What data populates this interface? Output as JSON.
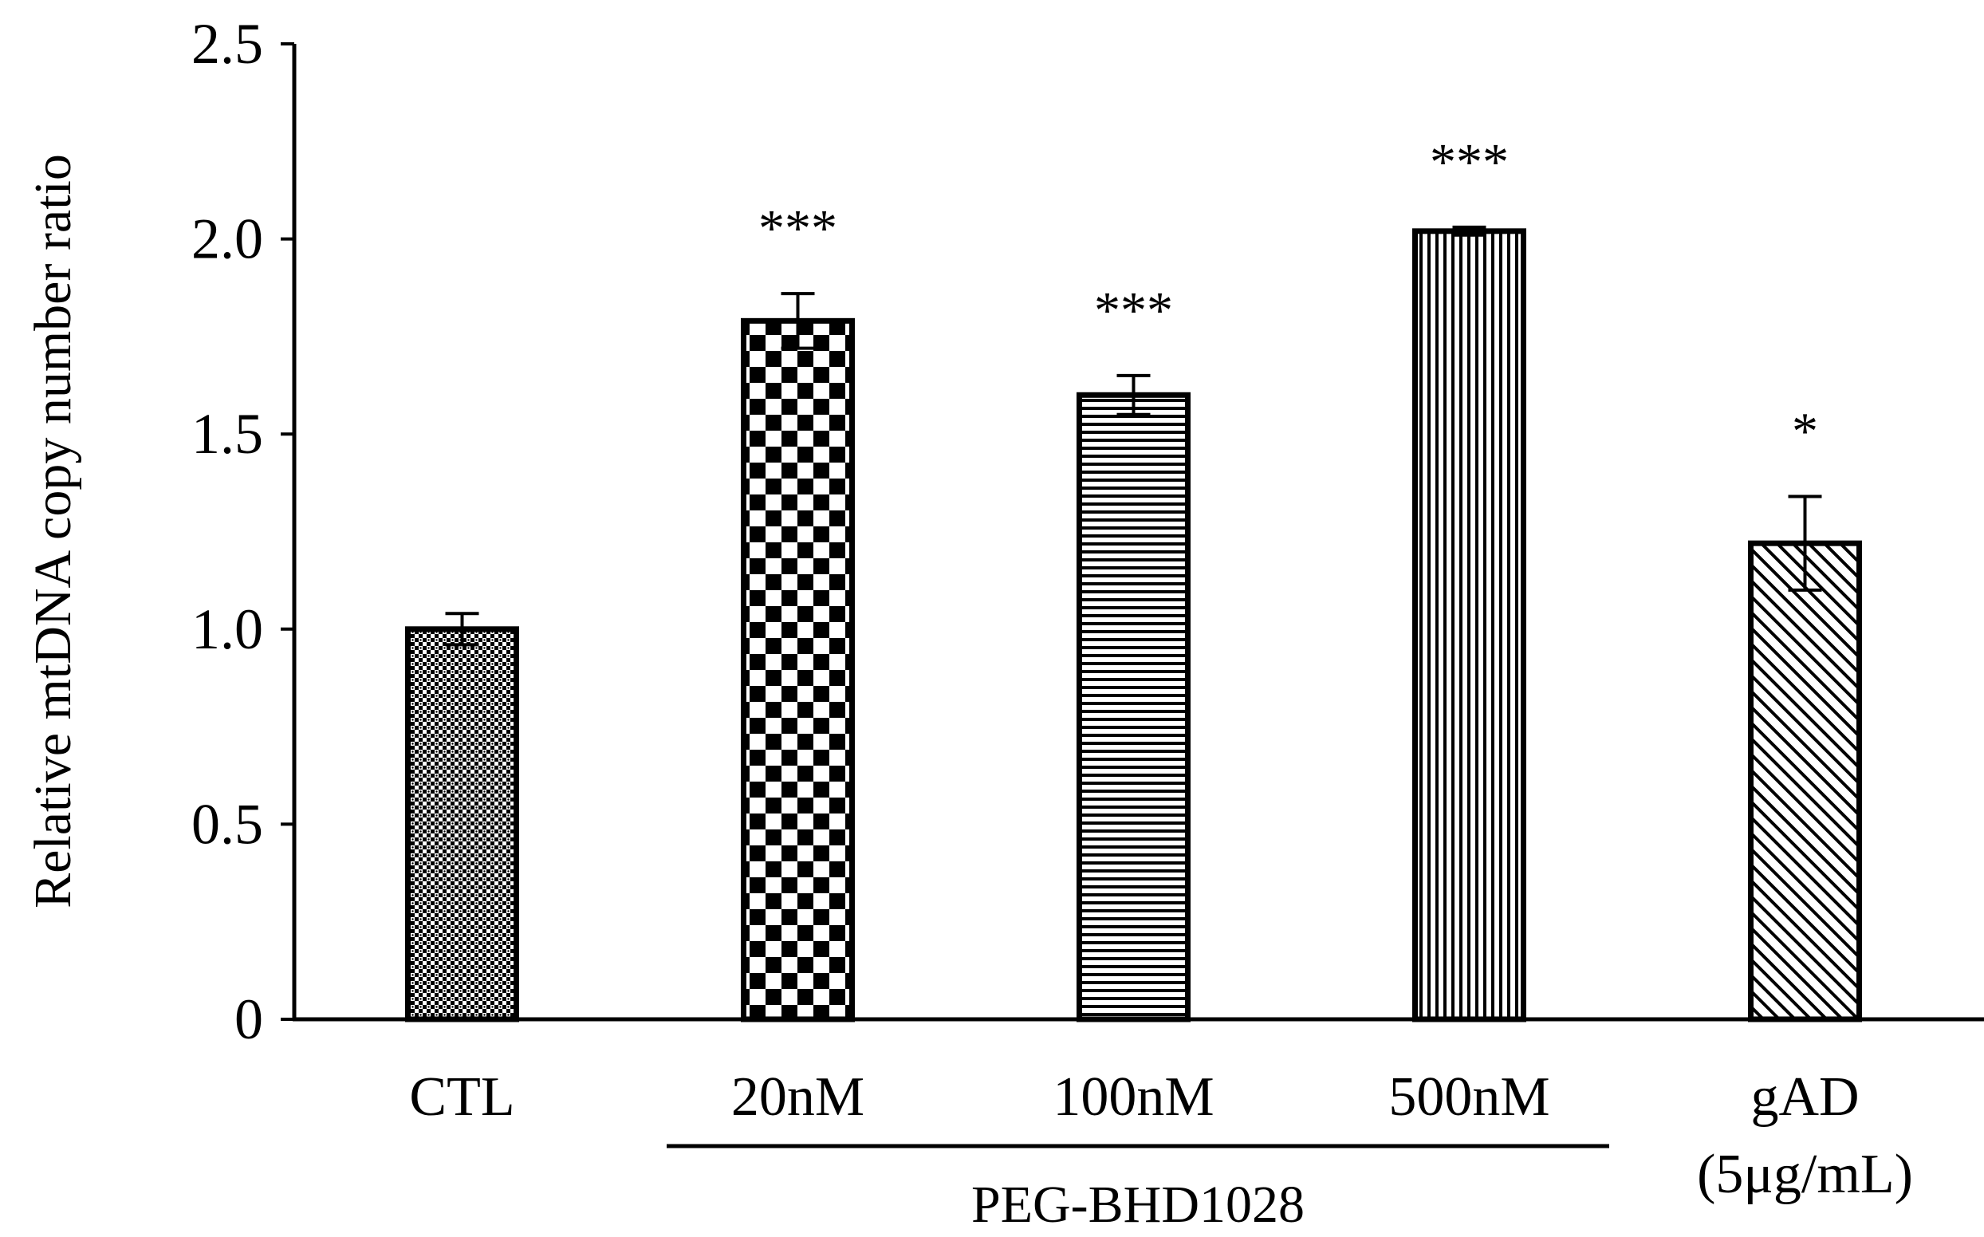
{
  "chart_data": {
    "type": "bar",
    "title": "",
    "xlabel": "",
    "ylabel": "Relative mtDNA copy number ratio",
    "ylim": [
      0,
      2.5
    ],
    "yticks": [
      "0",
      "0.5",
      "1.0",
      "1.5",
      "2.0",
      "2.5"
    ],
    "categories": [
      "CTL",
      "20nM",
      "100nM",
      "500nM",
      "gAD"
    ],
    "category_sublabels": [
      "",
      "",
      "",
      "",
      "(5μg/mL)"
    ],
    "values": [
      1.0,
      1.79,
      1.6,
      2.02,
      1.22
    ],
    "errors": [
      0.04,
      0.07,
      0.05,
      0.01,
      0.12
    ],
    "significance": [
      "",
      "***",
      "***",
      "***",
      "*"
    ],
    "patterns": [
      "dots",
      "checker",
      "horizontal-lines",
      "vertical-lines",
      "diagonal-lines"
    ],
    "group_label": "PEG-BHD1028",
    "grid": false,
    "legend": "none"
  }
}
